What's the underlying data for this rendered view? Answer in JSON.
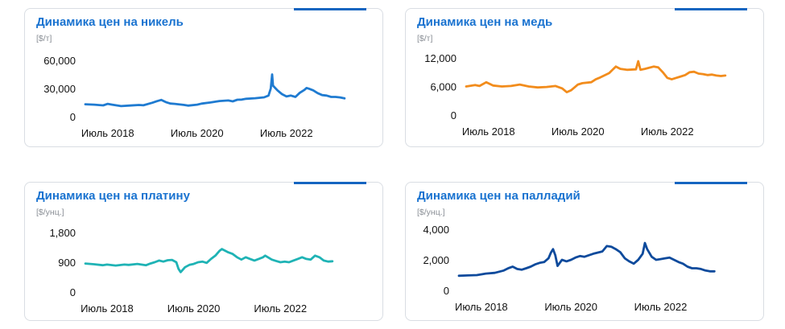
{
  "colors": {
    "accent": "#1565c0",
    "nickel": "#1f7bd1",
    "copper": "#f28c1c",
    "platinum": "#1fb3b5",
    "palladium": "#0d4a9c"
  },
  "chart_data": [
    {
      "id": "nickel",
      "type": "line",
      "title": "Динамика цен на никель",
      "unit": "[$/т]",
      "ylim": [
        0,
        60000
      ],
      "yticks": [
        0,
        30000,
        60000
      ],
      "ytick_labels": [
        "0",
        "30,000",
        "60,000"
      ],
      "xlim": [
        2018.0,
        2024.0
      ],
      "xticks": [
        2018.5,
        2020.5,
        2022.5
      ],
      "xtick_labels": [
        "Июль 2018",
        "Июль 2020",
        "Июль 2022"
      ],
      "series": [
        {
          "values": [
            [
              2018.0,
              13200
            ],
            [
              2018.2,
              12800
            ],
            [
              2018.4,
              12000
            ],
            [
              2018.5,
              13600
            ],
            [
              2018.6,
              12800
            ],
            [
              2018.8,
              11200
            ],
            [
              2019.0,
              11800
            ],
            [
              2019.2,
              12400
            ],
            [
              2019.3,
              12100
            ],
            [
              2019.5,
              14800
            ],
            [
              2019.6,
              16500
            ],
            [
              2019.7,
              17800
            ],
            [
              2019.8,
              15500
            ],
            [
              2019.9,
              14000
            ],
            [
              2020.0,
              13600
            ],
            [
              2020.2,
              12500
            ],
            [
              2020.3,
              11700
            ],
            [
              2020.5,
              12800
            ],
            [
              2020.6,
              13900
            ],
            [
              2020.8,
              15100
            ],
            [
              2021.0,
              16600
            ],
            [
              2021.2,
              17200
            ],
            [
              2021.3,
              16300
            ],
            [
              2021.4,
              18000
            ],
            [
              2021.5,
              18200
            ],
            [
              2021.6,
              19000
            ],
            [
              2021.8,
              19600
            ],
            [
              2022.0,
              20600
            ],
            [
              2022.1,
              22500
            ],
            [
              2022.15,
              30000
            ],
            [
              2022.18,
              45000
            ],
            [
              2022.2,
              33000
            ],
            [
              2022.3,
              28000
            ],
            [
              2022.4,
              24000
            ],
            [
              2022.5,
              21500
            ],
            [
              2022.6,
              22500
            ],
            [
              2022.7,
              21000
            ],
            [
              2022.8,
              25500
            ],
            [
              2022.9,
              28500
            ],
            [
              2022.95,
              30500
            ],
            [
              2023.0,
              29800
            ],
            [
              2023.1,
              28000
            ],
            [
              2023.2,
              25000
            ],
            [
              2023.3,
              23000
            ],
            [
              2023.4,
              22500
            ],
            [
              2023.5,
              21000
            ],
            [
              2023.6,
              21000
            ],
            [
              2023.7,
              20500
            ],
            [
              2023.8,
              19500
            ]
          ]
        }
      ]
    },
    {
      "id": "copper",
      "type": "line",
      "title": "Динамика цен на медь",
      "unit": "[$/т]",
      "ylim": [
        0,
        12000
      ],
      "yticks": [
        0,
        6000,
        12000
      ],
      "ytick_labels": [
        "0",
        "6,000",
        "12,000"
      ],
      "xlim": [
        2018.0,
        2024.0
      ],
      "xticks": [
        2018.5,
        2020.5,
        2022.5
      ],
      "xtick_labels": [
        "Июль 2018",
        "Июль 2020",
        "Июль 2022"
      ],
      "series": [
        {
          "values": [
            [
              2018.0,
              6000
            ],
            [
              2018.2,
              6300
            ],
            [
              2018.3,
              6100
            ],
            [
              2018.45,
              6900
            ],
            [
              2018.6,
              6200
            ],
            [
              2018.8,
              6000
            ],
            [
              2019.0,
              6100
            ],
            [
              2019.2,
              6400
            ],
            [
              2019.4,
              6000
            ],
            [
              2019.6,
              5800
            ],
            [
              2019.8,
              5900
            ],
            [
              2020.0,
              6100
            ],
            [
              2020.15,
              5600
            ],
            [
              2020.25,
              4800
            ],
            [
              2020.35,
              5200
            ],
            [
              2020.5,
              6400
            ],
            [
              2020.6,
              6700
            ],
            [
              2020.8,
              6900
            ],
            [
              2020.9,
              7500
            ],
            [
              2021.0,
              7900
            ],
            [
              2021.2,
              8800
            ],
            [
              2021.35,
              10200
            ],
            [
              2021.45,
              9700
            ],
            [
              2021.6,
              9500
            ],
            [
              2021.8,
              9600
            ],
            [
              2021.85,
              11300
            ],
            [
              2021.9,
              9500
            ],
            [
              2022.0,
              9700
            ],
            [
              2022.2,
              10200
            ],
            [
              2022.3,
              10000
            ],
            [
              2022.4,
              9000
            ],
            [
              2022.5,
              7800
            ],
            [
              2022.6,
              7500
            ],
            [
              2022.7,
              7800
            ],
            [
              2022.8,
              8100
            ],
            [
              2022.9,
              8400
            ],
            [
              2023.0,
              9000
            ],
            [
              2023.1,
              9100
            ],
            [
              2023.2,
              8700
            ],
            [
              2023.3,
              8600
            ],
            [
              2023.4,
              8400
            ],
            [
              2023.5,
              8500
            ],
            [
              2023.6,
              8300
            ],
            [
              2023.7,
              8200
            ],
            [
              2023.8,
              8300
            ]
          ]
        }
      ]
    },
    {
      "id": "platinum",
      "type": "line",
      "title": "Динамика цен на платину",
      "unit": "[$/унц.]",
      "ylim": [
        0,
        1800
      ],
      "yticks": [
        0,
        900,
        1800
      ],
      "ytick_labels": [
        "0",
        "900",
        "1,800"
      ],
      "xlim": [
        2018.0,
        2024.0
      ],
      "xticks": [
        2018.5,
        2020.5,
        2022.5
      ],
      "xtick_labels": [
        "Июль 2018",
        "Июль 2020",
        "Июль 2022"
      ],
      "series": [
        {
          "values": [
            [
              2018.0,
              860
            ],
            [
              2018.2,
              840
            ],
            [
              2018.4,
              810
            ],
            [
              2018.5,
              830
            ],
            [
              2018.7,
              800
            ],
            [
              2018.9,
              830
            ],
            [
              2019.0,
              820
            ],
            [
              2019.2,
              850
            ],
            [
              2019.4,
              810
            ],
            [
              2019.5,
              860
            ],
            [
              2019.6,
              900
            ],
            [
              2019.7,
              950
            ],
            [
              2019.8,
              920
            ],
            [
              2019.9,
              960
            ],
            [
              2020.0,
              970
            ],
            [
              2020.1,
              900
            ],
            [
              2020.15,
              700
            ],
            [
              2020.2,
              600
            ],
            [
              2020.3,
              750
            ],
            [
              2020.4,
              820
            ],
            [
              2020.5,
              850
            ],
            [
              2020.6,
              900
            ],
            [
              2020.7,
              920
            ],
            [
              2020.8,
              880
            ],
            [
              2020.9,
              1000
            ],
            [
              2021.0,
              1100
            ],
            [
              2021.1,
              1250
            ],
            [
              2021.15,
              1300
            ],
            [
              2021.3,
              1200
            ],
            [
              2021.4,
              1150
            ],
            [
              2021.5,
              1050
            ],
            [
              2021.6,
              980
            ],
            [
              2021.7,
              1050
            ],
            [
              2021.8,
              1000
            ],
            [
              2021.9,
              950
            ],
            [
              2022.0,
              1000
            ],
            [
              2022.1,
              1050
            ],
            [
              2022.15,
              1100
            ],
            [
              2022.3,
              980
            ],
            [
              2022.4,
              940
            ],
            [
              2022.5,
              900
            ],
            [
              2022.6,
              920
            ],
            [
              2022.7,
              900
            ],
            [
              2022.8,
              950
            ],
            [
              2022.9,
              1000
            ],
            [
              2023.0,
              1050
            ],
            [
              2023.1,
              1000
            ],
            [
              2023.2,
              980
            ],
            [
              2023.3,
              1100
            ],
            [
              2023.4,
              1050
            ],
            [
              2023.5,
              950
            ],
            [
              2023.6,
              920
            ],
            [
              2023.7,
              930
            ]
          ]
        }
      ]
    },
    {
      "id": "palladium",
      "type": "line",
      "title": "Динамика цен на палладий",
      "unit": "[$/унц.]",
      "ylim": [
        0,
        4000
      ],
      "yticks": [
        0,
        2000,
        4000
      ],
      "ytick_labels": [
        "0",
        "2,000",
        "4,000"
      ],
      "xlim": [
        2018.0,
        2024.0
      ],
      "xticks": [
        2018.5,
        2020.5,
        2022.5
      ],
      "xtick_labels": [
        "Июль 2018",
        "Июль 2020",
        "Июль 2022"
      ],
      "series": [
        {
          "values": [
            [
              2018.0,
              960
            ],
            [
              2018.2,
              980
            ],
            [
              2018.4,
              1000
            ],
            [
              2018.6,
              1100
            ],
            [
              2018.8,
              1150
            ],
            [
              2019.0,
              1300
            ],
            [
              2019.1,
              1450
            ],
            [
              2019.2,
              1550
            ],
            [
              2019.3,
              1400
            ],
            [
              2019.4,
              1350
            ],
            [
              2019.5,
              1450
            ],
            [
              2019.6,
              1550
            ],
            [
              2019.7,
              1700
            ],
            [
              2019.8,
              1800
            ],
            [
              2019.9,
              1850
            ],
            [
              2020.0,
              2100
            ],
            [
              2020.05,
              2450
            ],
            [
              2020.1,
              2700
            ],
            [
              2020.15,
              2300
            ],
            [
              2020.2,
              1600
            ],
            [
              2020.3,
              2000
            ],
            [
              2020.4,
              1900
            ],
            [
              2020.5,
              2000
            ],
            [
              2020.6,
              2150
            ],
            [
              2020.7,
              2250
            ],
            [
              2020.8,
              2200
            ],
            [
              2020.9,
              2300
            ],
            [
              2021.0,
              2400
            ],
            [
              2021.2,
              2550
            ],
            [
              2021.3,
              2900
            ],
            [
              2021.4,
              2850
            ],
            [
              2021.5,
              2700
            ],
            [
              2021.6,
              2500
            ],
            [
              2021.7,
              2100
            ],
            [
              2021.8,
              1900
            ],
            [
              2021.9,
              1750
            ],
            [
              2022.0,
              2000
            ],
            [
              2022.1,
              2400
            ],
            [
              2022.15,
              3100
            ],
            [
              2022.2,
              2700
            ],
            [
              2022.3,
              2200
            ],
            [
              2022.4,
              2000
            ],
            [
              2022.5,
              2050
            ],
            [
              2022.6,
              2100
            ],
            [
              2022.7,
              2150
            ],
            [
              2022.8,
              2000
            ],
            [
              2022.9,
              1850
            ],
            [
              2023.0,
              1750
            ],
            [
              2023.1,
              1550
            ],
            [
              2023.2,
              1450
            ],
            [
              2023.3,
              1450
            ],
            [
              2023.4,
              1400
            ],
            [
              2023.5,
              1300
            ],
            [
              2023.6,
              1250
            ],
            [
              2023.7,
              1250
            ]
          ]
        }
      ]
    }
  ]
}
